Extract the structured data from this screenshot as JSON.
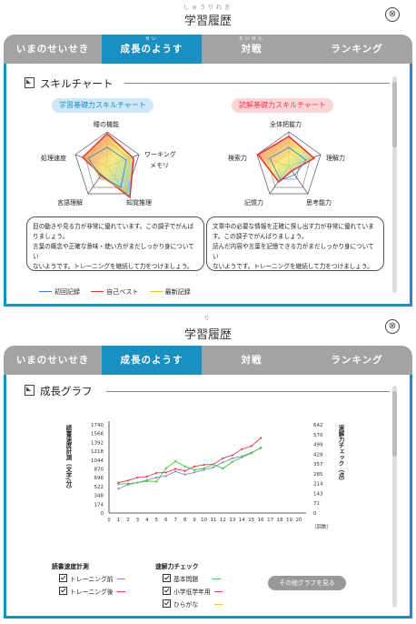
{
  "title": "学習履歴",
  "title_ruby": "しゅうりれき",
  "title2_ruby": "り",
  "close_glyph": "⊗",
  "tabs": [
    {
      "label": "いまのせいせき",
      "ruby": ""
    },
    {
      "label": "成長のようす",
      "ruby": "せい"
    },
    {
      "label": "対戦",
      "ruby": "たいせん"
    },
    {
      "label": "ランキング",
      "ruby": ""
    }
  ],
  "skill": {
    "heading": "スキルチャート",
    "left": {
      "title": "学習基礎力スキルチャート",
      "axes": [
        "瞳の機能",
        "ワーキング",
        "メモリ",
        "知覚推理",
        "言語理解",
        "処理速度"
      ],
      "comment": [
        "目の動きや見る力が非常に優れています。この調子でがんば",
        "りましょう。",
        "言葉の概念や正確な意味・使い方がまだしっかり身についてい",
        "ないようです。トレーニングを継続して力をつけましょう。"
      ]
    },
    "right": {
      "title": "読解基礎力スキルチャート",
      "axes": [
        "全体把握力",
        "理解力",
        "思考能力",
        "記憶力",
        "検索力"
      ],
      "comment": [
        "文章中の必要な情報を正確に探し出す力が非常に優れていま",
        "す。この調子でがんばりましょう。",
        "読んだ内容や言葉を記憶できる力がまだしっかり身についてい",
        "ないようです。トレーニングを継続して力をつけましょう。"
      ]
    },
    "legend": [
      "初回記録",
      "自己ベスト",
      "最新記録"
    ],
    "colors": {
      "first": "#2a7fd6",
      "best": "#e8322f",
      "latest": "#f0c419"
    }
  },
  "growth": {
    "heading": "成長グラフ",
    "more_button": "その他グラフを見る",
    "group1_title": "読書速度計測",
    "group1_items": [
      "トレーニング前",
      "トレーニング後"
    ],
    "group2_title": "速解力チェック",
    "group2_items": [
      "基本問題",
      "小学低学年用",
      "ひらがな"
    ]
  },
  "chart_data": {
    "type": "line",
    "ylabel": "読書速度計測（文字/分）",
    "y2label": "速解力チェック（点）",
    "xlabel": "（回数）",
    "x": [
      0,
      1,
      2,
      3,
      4,
      5,
      6,
      7,
      8,
      9,
      10,
      11,
      12,
      13,
      14,
      15,
      16,
      17,
      18,
      19,
      20
    ],
    "yticks": [
      "0",
      "174",
      "348",
      "522",
      "696",
      "870",
      "1044",
      "1218",
      "1392",
      "1566",
      "1740"
    ],
    "y2ticks": [
      "0",
      "71",
      "143",
      "214",
      "285",
      "357",
      "428",
      "499",
      "570",
      "642"
    ],
    "ylim": [
      0,
      1740
    ],
    "series": [
      {
        "name": "トレーニング前",
        "color": "#8888cc",
        "x": [
          1,
          2,
          3,
          4,
          5,
          6,
          7,
          8,
          9,
          10,
          11,
          12,
          13,
          14,
          15,
          16
        ],
        "values": [
          480,
          560,
          600,
          650,
          700,
          730,
          820,
          760,
          800,
          850,
          900,
          1000,
          1080,
          1120,
          1190,
          1280
        ]
      },
      {
        "name": "トレーニング後",
        "color": "#e04050",
        "x": [
          1,
          2,
          3,
          4,
          5,
          6,
          7,
          8,
          9,
          10,
          11,
          12,
          13,
          14,
          15,
          16
        ],
        "values": [
          600,
          640,
          700,
          720,
          790,
          800,
          870,
          830,
          920,
          950,
          960,
          1080,
          1140,
          1260,
          1320,
          1480
        ]
      },
      {
        "name": "基本問題",
        "color": "#44c444",
        "x": [
          1,
          2,
          3,
          4,
          5,
          6,
          7,
          8,
          9,
          10,
          11,
          12,
          13,
          14,
          15,
          16
        ],
        "values": [
          570,
          580,
          600,
          630,
          620,
          880,
          1020,
          920,
          850,
          880,
          960,
          880,
          1010,
          1100,
          1180,
          1290
        ]
      }
    ]
  }
}
